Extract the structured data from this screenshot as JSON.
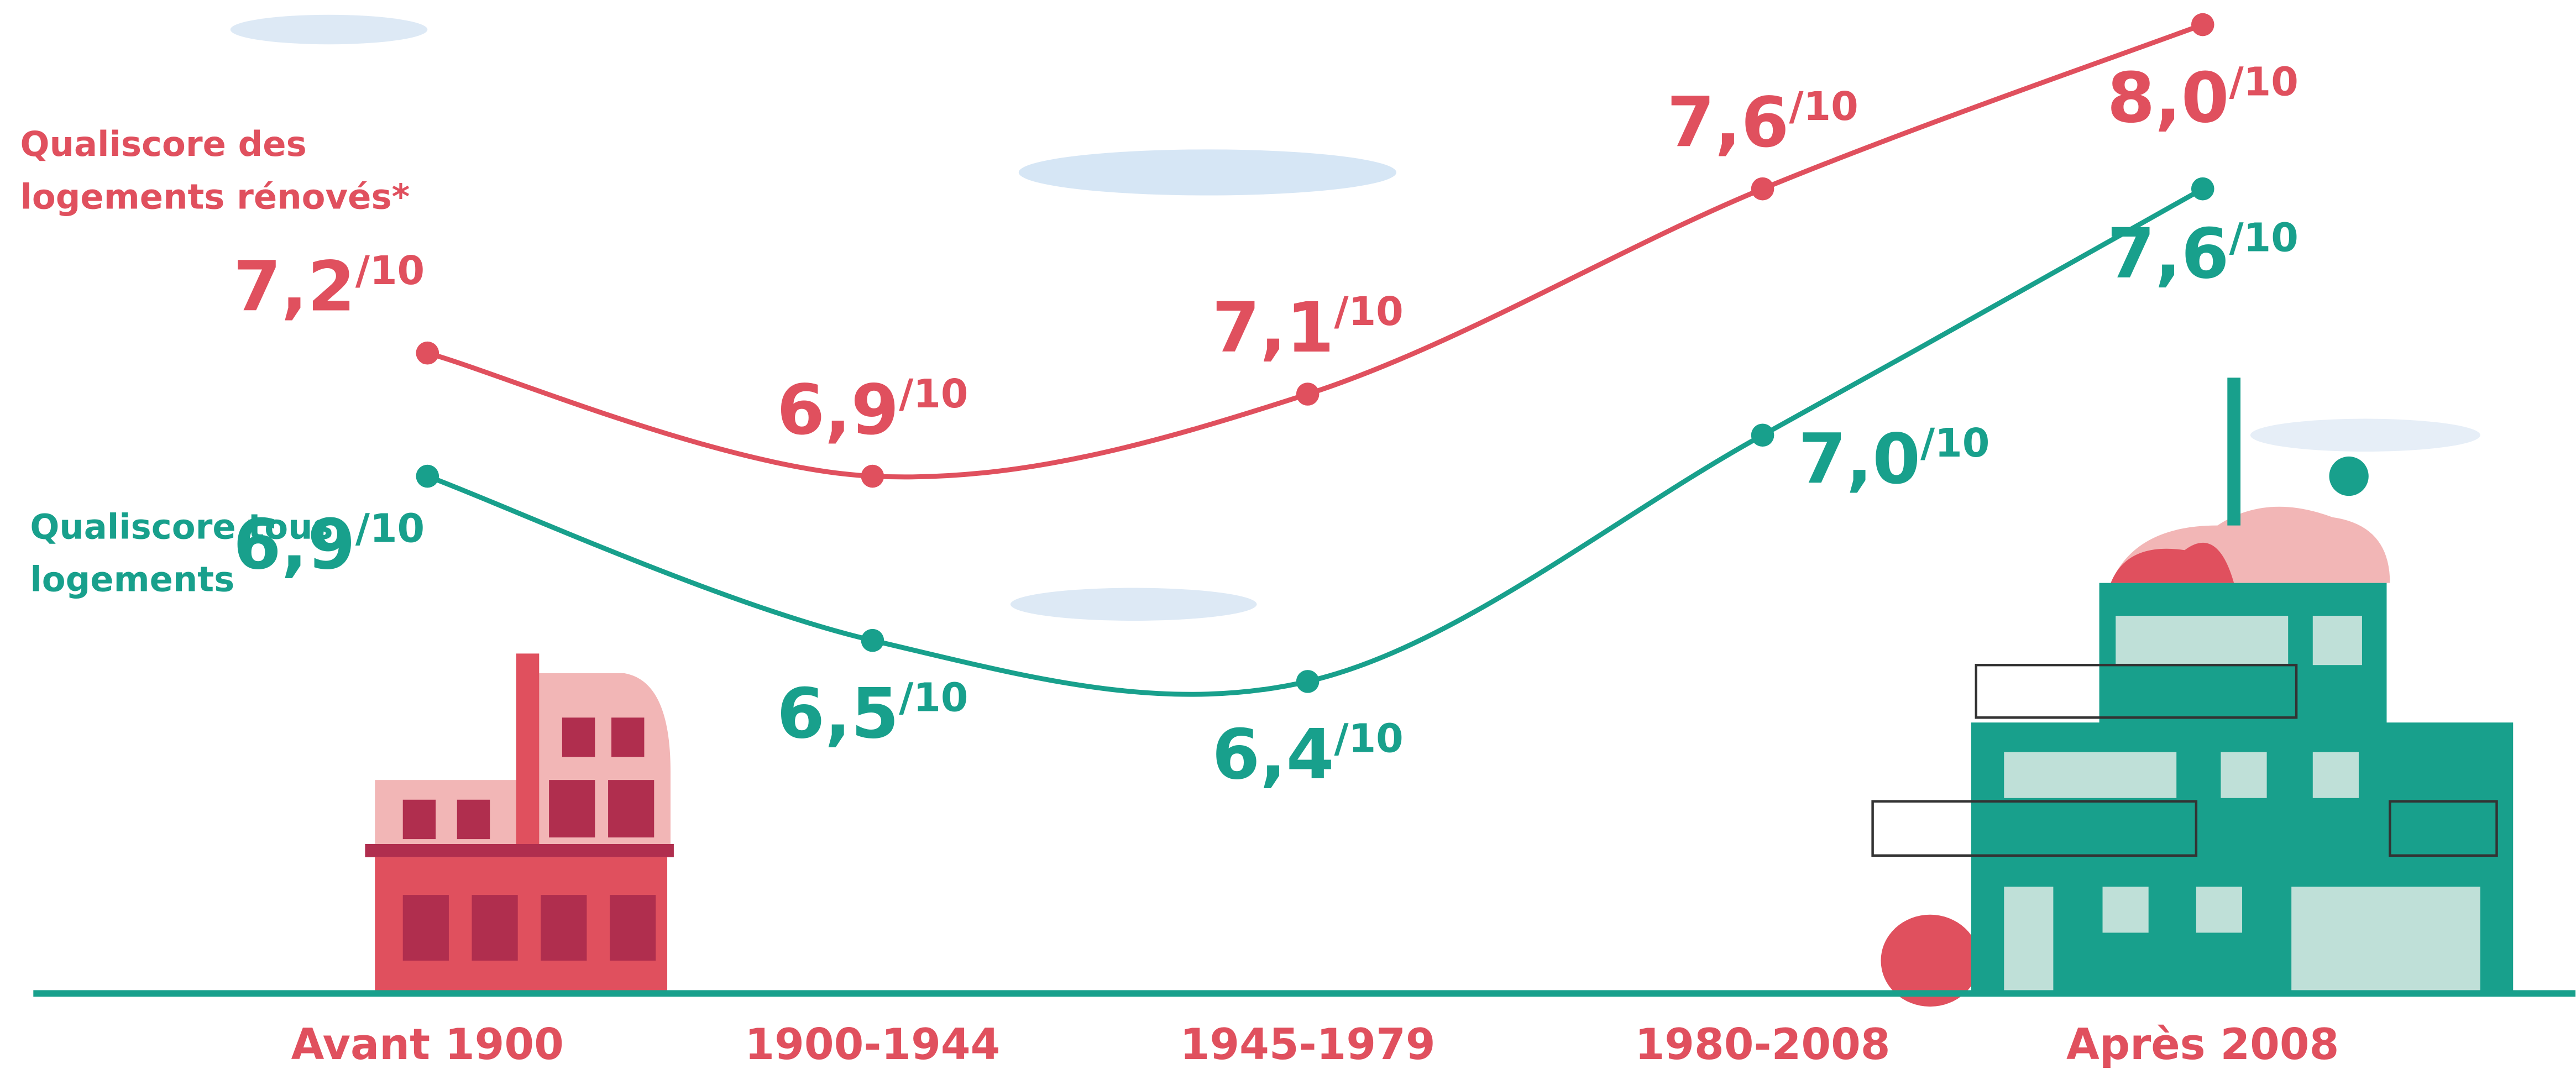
{
  "chart_data": {
    "type": "line",
    "categories": [
      "Avant 1900",
      "1900-1944",
      "1945-1979",
      "1980-2008",
      "Après 2008"
    ],
    "series": [
      {
        "name": "Qualiscore des logements rénovés*",
        "color": "#e0505e",
        "values": [
          7.2,
          6.9,
          7.1,
          7.6,
          8.0
        ],
        "value_labels": [
          "7,2/10",
          "6,9/10",
          "7,1/10",
          "7,6/10",
          "8,0/10"
        ]
      },
      {
        "name": "Qualiscore tous logements",
        "color": "#18a08c",
        "values": [
          6.9,
          6.5,
          6.4,
          7.0,
          7.6
        ],
        "value_labels": [
          "6,9/10",
          "6,5/10",
          "6,4/10",
          "7,0/10",
          "7,6/10"
        ]
      }
    ]
  }
}
